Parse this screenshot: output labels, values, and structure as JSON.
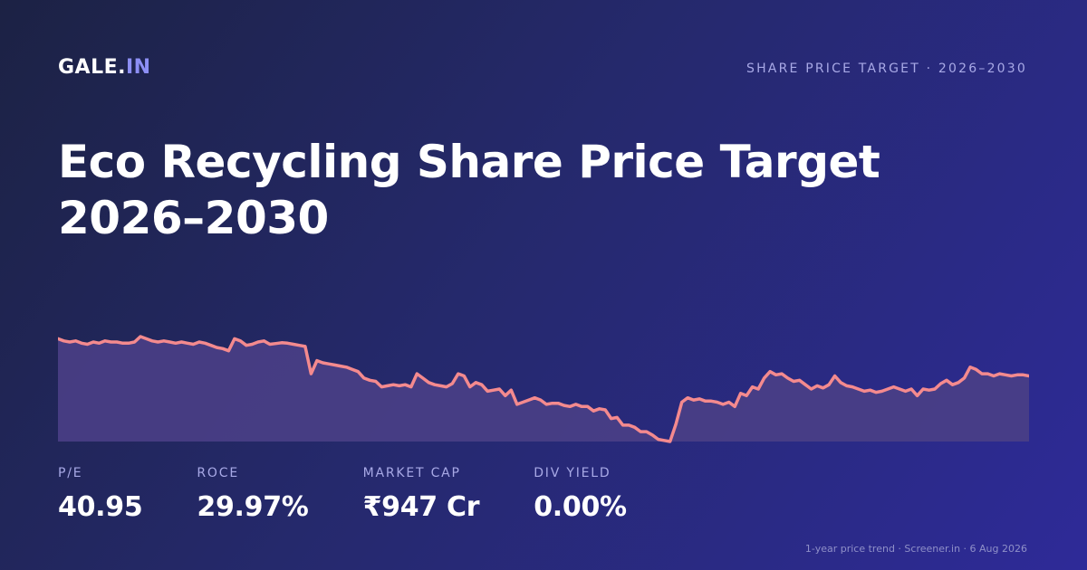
{
  "brand": {
    "name": "GALE.",
    "accent": "IN"
  },
  "tagline": "SHARE PRICE TARGET · 2026–2030",
  "title": {
    "line1": "Eco Recycling Share Price Target",
    "line2": "2026–2030"
  },
  "stats": [
    {
      "label": "P/E",
      "value": "40.95"
    },
    {
      "label": "ROCE",
      "value": "29.97%"
    },
    {
      "label": "MARKET CAP",
      "value": "₹947 Cr"
    },
    {
      "label": "DIV YIELD",
      "value": "0.00%"
    }
  ],
  "footnote": "1-year price trend · Screener.in · 6 Aug 2026",
  "colors": {
    "line": "#f48a8e",
    "area": "#4a3f86",
    "accent": "#8d8ff5"
  },
  "chart_data": {
    "type": "area",
    "title": "",
    "xlabel": "",
    "ylabel": "",
    "grid": false,
    "axes_shown": false,
    "values": [
      100,
      99,
      98.5,
      99,
      98,
      97.5,
      98.5,
      98,
      99,
      98.5,
      98.5,
      98,
      98,
      98.5,
      101,
      100,
      99,
      98.5,
      99,
      98.5,
      98,
      98.5,
      98,
      97.5,
      98.5,
      98,
      97,
      96,
      95.5,
      94.5,
      100,
      99,
      97,
      97.5,
      98.5,
      99,
      97.5,
      97.8,
      98.2,
      98,
      97.5,
      97,
      96.5,
      84,
      90,
      89,
      88.5,
      88,
      87.5,
      87,
      86,
      85,
      82,
      81,
      80.5,
      78,
      78.5,
      79,
      78.5,
      79,
      78,
      84,
      82,
      80,
      79,
      78.5,
      78,
      79.5,
      84,
      83,
      78,
      80,
      79,
      76,
      76.5,
      77,
      74,
      76.5,
      70,
      71,
      72,
      73,
      72,
      70,
      70.5,
      70.5,
      69.5,
      69,
      70,
      69,
      69,
      67,
      68,
      67.5,
      63.5,
      64,
      60.5,
      60.5,
      59.5,
      57.5,
      57.5,
      56,
      54,
      53.5,
      53,
      61,
      71,
      73,
      72,
      72.5,
      71.5,
      71.5,
      71,
      70,
      71,
      69,
      75,
      74,
      78,
      77,
      82,
      85,
      83.5,
      84,
      82,
      80.5,
      81,
      79,
      77,
      78.5,
      77.5,
      79,
      83,
      80,
      78.5,
      78,
      77,
      76,
      76.5,
      75.5,
      76,
      77,
      78,
      77,
      76,
      77,
      74,
      77,
      76.5,
      77,
      79.5,
      81,
      79,
      80,
      82,
      87,
      86,
      84,
      84,
      83,
      84,
      83.5,
      83,
      83.5,
      83.5,
      83
    ]
  }
}
